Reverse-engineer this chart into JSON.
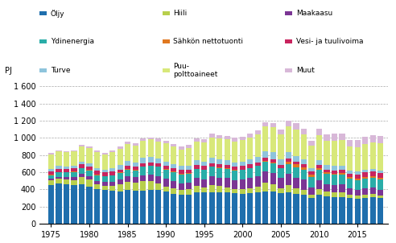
{
  "years": [
    1975,
    1976,
    1977,
    1978,
    1979,
    1980,
    1981,
    1982,
    1983,
    1984,
    1985,
    1986,
    1987,
    1988,
    1989,
    1990,
    1991,
    1992,
    1993,
    1994,
    1995,
    1996,
    1997,
    1998,
    1999,
    2000,
    2001,
    2002,
    2003,
    2004,
    2005,
    2006,
    2007,
    2008,
    2009,
    2010,
    2011,
    2012,
    2013,
    2014,
    2015,
    2016,
    2017,
    2018
  ],
  "series": {
    "Öljy": [
      450,
      470,
      460,
      450,
      460,
      430,
      400,
      390,
      380,
      370,
      390,
      380,
      385,
      390,
      390,
      370,
      345,
      340,
      340,
      360,
      360,
      360,
      365,
      360,
      355,
      350,
      355,
      360,
      370,
      370,
      355,
      360,
      350,
      340,
      300,
      335,
      320,
      310,
      310,
      295,
      290,
      300,
      310,
      300
    ],
    "Hiili": [
      55,
      50,
      50,
      55,
      80,
      80,
      55,
      45,
      55,
      85,
      100,
      95,
      110,
      105,
      80,
      60,
      65,
      50,
      60,
      80,
      60,
      90,
      70,
      60,
      50,
      50,
      60,
      70,
      110,
      90,
      60,
      90,
      65,
      55,
      35,
      70,
      55,
      50,
      55,
      40,
      35,
      40,
      35,
      30
    ],
    "Maakaasu": [
      20,
      25,
      30,
      35,
      40,
      45,
      45,
      50,
      55,
      55,
      60,
      65,
      70,
      75,
      80,
      90,
      85,
      80,
      80,
      90,
      95,
      100,
      100,
      110,
      100,
      110,
      115,
      120,
      130,
      130,
      115,
      130,
      120,
      115,
      90,
      100,
      85,
      90,
      90,
      75,
      65,
      70,
      75,
      65
    ],
    "Ydinenergia": [
      40,
      50,
      55,
      60,
      65,
      65,
      65,
      65,
      70,
      80,
      80,
      80,
      95,
      100,
      110,
      110,
      105,
      105,
      100,
      105,
      110,
      110,
      115,
      110,
      115,
      115,
      115,
      120,
      115,
      115,
      115,
      115,
      120,
      115,
      115,
      120,
      120,
      120,
      120,
      115,
      115,
      115,
      115,
      115
    ],
    "Sähkön nettotuonti": [
      5,
      5,
      5,
      5,
      5,
      5,
      5,
      5,
      5,
      5,
      5,
      5,
      5,
      5,
      5,
      5,
      5,
      5,
      5,
      5,
      5,
      5,
      5,
      5,
      5,
      5,
      5,
      5,
      5,
      5,
      5,
      25,
      35,
      30,
      30,
      20,
      15,
      10,
      10,
      15,
      20,
      20,
      20,
      20
    ],
    "Vesi- ja tuulivoima": [
      40,
      40,
      35,
      40,
      40,
      40,
      45,
      40,
      40,
      35,
      35,
      35,
      40,
      40,
      35,
      40,
      40,
      45,
      40,
      40,
      40,
      40,
      40,
      40,
      40,
      40,
      40,
      40,
      40,
      40,
      35,
      35,
      35,
      35,
      35,
      35,
      35,
      40,
      40,
      40,
      45,
      50,
      55,
      60
    ],
    "Turve": [
      30,
      30,
      30,
      30,
      35,
      35,
      35,
      35,
      40,
      50,
      60,
      55,
      60,
      60,
      55,
      50,
      50,
      45,
      50,
      55,
      50,
      65,
      55,
      55,
      50,
      50,
      55,
      60,
      75,
      80,
      60,
      75,
      65,
      55,
      40,
      60,
      50,
      50,
      50,
      40,
      35,
      35,
      30,
      25
    ],
    "Puu-polttoaineet": [
      170,
      170,
      165,
      165,
      175,
      180,
      180,
      175,
      185,
      195,
      200,
      195,
      200,
      205,
      205,
      210,
      200,
      195,
      205,
      220,
      225,
      235,
      240,
      240,
      245,
      255,
      260,
      265,
      285,
      290,
      295,
      305,
      310,
      295,
      260,
      295,
      285,
      295,
      295,
      280,
      285,
      295,
      310,
      320
    ],
    "Muut": [
      15,
      15,
      15,
      15,
      20,
      20,
      20,
      20,
      20,
      25,
      25,
      25,
      25,
      25,
      30,
      30,
      30,
      30,
      35,
      35,
      35,
      40,
      40,
      40,
      40,
      40,
      45,
      45,
      50,
      55,
      60,
      65,
      70,
      70,
      60,
      70,
      75,
      80,
      80,
      75,
      80,
      85,
      85,
      90
    ]
  },
  "colors": {
    "Öljy": "#1f6fad",
    "Hiili": "#b8cf4c",
    "Maakaasu": "#7b3594",
    "Ydinenergia": "#2aada8",
    "Sähkön nettotuonti": "#e07820",
    "Vesi- ja tuulivoima": "#c8245e",
    "Turve": "#8ec4dc",
    "Puu-polttoaineet": "#d8e87a",
    "Muut": "#d8b8d8"
  },
  "stack_order": [
    "Öljy",
    "Hiili",
    "Maakaasu",
    "Ydinenergia",
    "Sähkön nettotuonti",
    "Vesi- ja tuulivoima",
    "Turve",
    "Puu-polttoaineet",
    "Muut"
  ],
  "legend_labels": {
    "Öljy": "Öljy",
    "Hiili": "Hiili",
    "Maakaasu": "Maakaasu",
    "Ydinenergia": "Ydinenergia",
    "Sähkön nettotuonti": "Sähkön nettotuonti",
    "Vesi- ja tuulivoima": "Vesi- ja tuulivoima",
    "Turve": "Turve",
    "Puu-polttoaineet": "Puu-\npolttoaineet",
    "Muut": "Muut"
  },
  "legend_row_order": [
    [
      "Öljy",
      "Hiili",
      "Maakaasu"
    ],
    [
      "Ydinenergia",
      "Sähkön nettotuonti",
      "Vesi- ja tuulivoima"
    ],
    [
      "Turve",
      "Puu-polttoaineet",
      "Muut"
    ]
  ],
  "ylabel": "PJ",
  "ylim": [
    0,
    1700
  ],
  "yticks": [
    0,
    200,
    400,
    600,
    800,
    1000,
    1200,
    1400,
    1600
  ],
  "ytick_labels": [
    "0",
    "200",
    "400",
    "600",
    "800",
    "1 000",
    "1 200",
    "1 400",
    "1 600"
  ],
  "xticks": [
    1975,
    1980,
    1985,
    1990,
    1995,
    2000,
    2005,
    2010,
    2015
  ]
}
